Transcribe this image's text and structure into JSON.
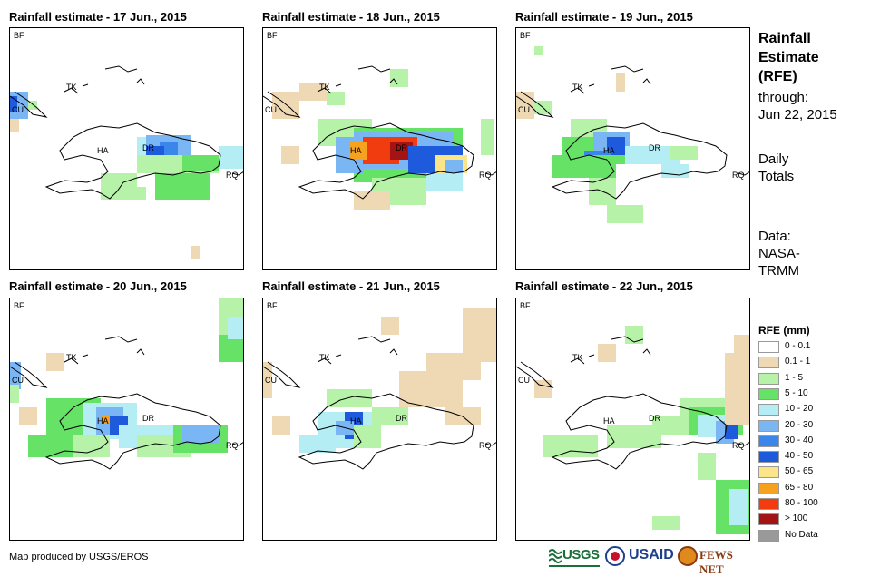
{
  "panels": [
    {
      "title": "Rainfall estimate - 17 Jun., 2015"
    },
    {
      "title": "Rainfall estimate - 18 Jun., 2015"
    },
    {
      "title": "Rainfall estimate - 19 Jun., 2015"
    },
    {
      "title": "Rainfall estimate - 20 Jun., 2015"
    },
    {
      "title": "Rainfall estimate - 21 Jun., 2015"
    },
    {
      "title": "Rainfall estimate - 22 Jun., 2015"
    }
  ],
  "map_labels": {
    "bf": "BF",
    "cu": "CU",
    "tk": "TK",
    "ha": "HA",
    "dr": "DR",
    "rq": "RQ"
  },
  "side": {
    "title_line1": "Rainfall",
    "title_line2": "Estimate",
    "title_line3": "(RFE)",
    "through_label": "through:",
    "through_date": "Jun 22, 2015",
    "totals_line1": "Daily",
    "totals_line2": "Totals",
    "data_line1": "Data:",
    "data_line2": "NASA-",
    "data_line3": "TRMM"
  },
  "legend": {
    "title": "RFE (mm)",
    "items": [
      {
        "label": "0 - 0.1",
        "color": "#ffffff"
      },
      {
        "label": "0.1 - 1",
        "color": "#efd9b4"
      },
      {
        "label": "1 - 5",
        "color": "#b6f2a8"
      },
      {
        "label": "5 - 10",
        "color": "#66e266"
      },
      {
        "label": "10 - 20",
        "color": "#b4eef4"
      },
      {
        "label": "20 - 30",
        "color": "#7ab6f4"
      },
      {
        "label": "30 - 40",
        "color": "#3a86ea"
      },
      {
        "label": "40 - 50",
        "color": "#1e5adc"
      },
      {
        "label": "50 - 65",
        "color": "#fce48a"
      },
      {
        "label": "65 - 80",
        "color": "#f6a21e"
      },
      {
        "label": "80 - 100",
        "color": "#f03c0e"
      },
      {
        "label": "> 100",
        "color": "#a41414"
      },
      {
        "label": "No Data",
        "color": "#999999"
      }
    ]
  },
  "footer": {
    "credit": "Map produced by USGS/EROS",
    "logo_usgs": "USGS",
    "logo_usaid": "USAID",
    "logo_fewsnet": "FEWS NET"
  }
}
